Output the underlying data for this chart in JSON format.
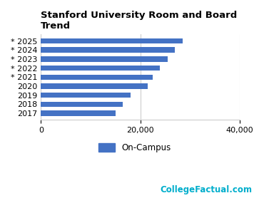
{
  "title": "Stanford University Room and Board\nTrend",
  "categories": [
    "* 2025",
    "* 2024",
    "* 2023",
    "* 2022",
    "* 2021",
    "2020",
    "2019",
    "2018",
    "2017"
  ],
  "values": [
    28500,
    27000,
    25500,
    24000,
    22500,
    21500,
    18000,
    16500,
    15000
  ],
  "bar_color": "#4472c4",
  "xlim": [
    0,
    40000
  ],
  "xticks": [
    0,
    20000,
    40000
  ],
  "legend_label": "On-Campus",
  "watermark": "CollegeFactual.com",
  "watermark_color": "#00aecc",
  "background_color": "#ffffff",
  "grid_color": "#cccccc",
  "title_fontsize": 9.5,
  "tick_fontsize": 8,
  "legend_fontsize": 8.5
}
